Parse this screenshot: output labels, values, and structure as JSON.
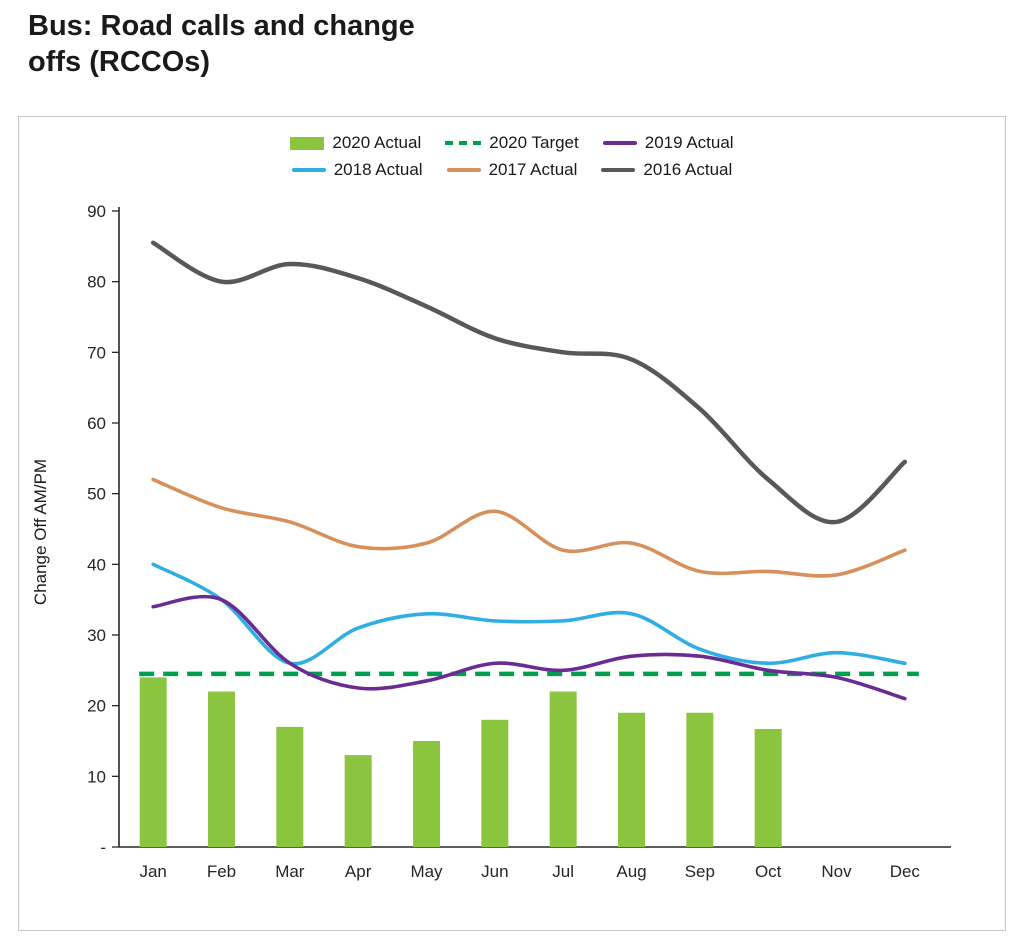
{
  "page": {
    "title_line1": "Bus: Road calls and change",
    "title_line2": "offs (RCCOs)"
  },
  "chart_data": {
    "type": "combo",
    "title": "Bus: Road calls and change offs (RCCOs)",
    "xlabel": "",
    "ylabel": "Change Off AM/PM",
    "ylim": [
      0,
      90
    ],
    "ytick_step": 10,
    "ytick_labels": [
      "-",
      "10",
      "20",
      "30",
      "40",
      "50",
      "60",
      "70",
      "80",
      "90"
    ],
    "grid": false,
    "legend_position": "top",
    "categories": [
      "Jan",
      "Feb",
      "Mar",
      "Apr",
      "May",
      "Jun",
      "Jul",
      "Aug",
      "Sep",
      "Oct",
      "Nov",
      "Dec"
    ],
    "series": [
      {
        "name": "2020 Actual",
        "type": "bar",
        "color": "#8BC53F",
        "values": [
          24,
          22,
          17,
          13,
          15,
          18,
          22,
          19,
          19,
          16.7,
          null,
          null
        ]
      },
      {
        "name": "2020 Target",
        "type": "dash",
        "color": "#00A050",
        "stroke_width": 4.5,
        "values": [
          24.5,
          24.5,
          24.5,
          24.5,
          24.5,
          24.5,
          24.5,
          24.5,
          24.5,
          24.5,
          24.5,
          24.5
        ]
      },
      {
        "name": "2016 Actual",
        "type": "line",
        "color": "#56585A",
        "stroke_width": 4.5,
        "values": [
          85.5,
          80,
          82.5,
          80.5,
          76.5,
          72,
          70,
          69,
          62,
          52,
          46,
          54.5
        ]
      },
      {
        "name": "2017 Actual",
        "type": "line",
        "color": "#D78F5C",
        "stroke_width": 3.6,
        "values": [
          52,
          48,
          46,
          42.5,
          43,
          47.5,
          42,
          43,
          39,
          39,
          38.5,
          42
        ]
      },
      {
        "name": "2018 Actual",
        "type": "line",
        "color": "#2FAEE3",
        "stroke_width": 3.6,
        "values": [
          40,
          35,
          26,
          31,
          33,
          32,
          32,
          33,
          28,
          26,
          27.5,
          26
        ]
      },
      {
        "name": "2019 Actual",
        "type": "line",
        "color": "#6A2C93",
        "stroke_width": 3.6,
        "values": [
          34,
          35,
          26,
          22.5,
          23.5,
          26,
          25,
          27,
          27,
          25,
          24,
          21
        ]
      }
    ],
    "legend_rows": [
      [
        "2020 Actual",
        "2020 Target",
        "2019 Actual"
      ],
      [
        "2018 Actual",
        "2017 Actual",
        "2016 Actual"
      ]
    ]
  }
}
